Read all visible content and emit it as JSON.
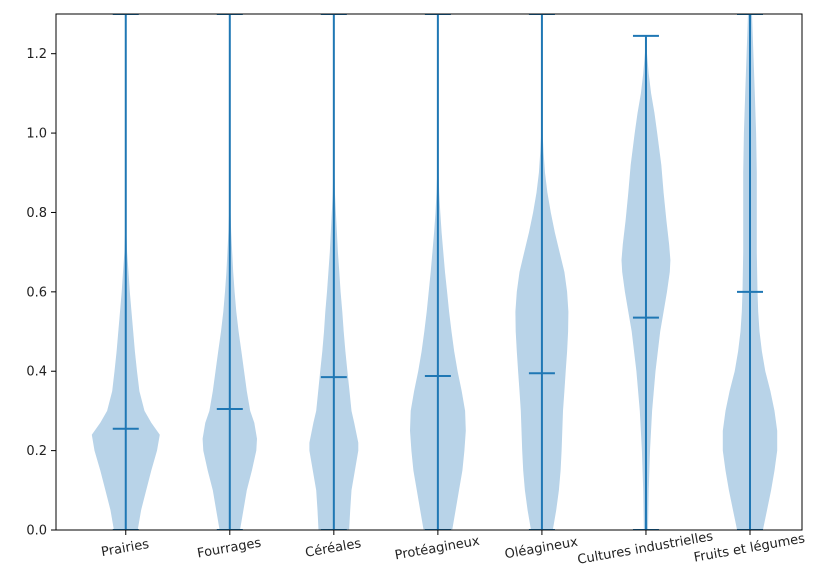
{
  "chart_data": {
    "type": "violin",
    "categories": [
      "Prairies",
      "Fourrages",
      "Céréales",
      "Protéagineux",
      "Oléagineux",
      "Cultures industrielles",
      "Fruits et légumes"
    ],
    "ylim": [
      0,
      1.3
    ],
    "yticks": [
      "0.0",
      "0.2",
      "0.4",
      "0.6",
      "0.8",
      "1.0",
      "1.2"
    ],
    "ytick_values": [
      0.0,
      0.2,
      0.4,
      0.6,
      0.8,
      1.0,
      1.2
    ],
    "grid": false,
    "fill_color": "#b8d3e8",
    "line_color": "#1f77b4",
    "series": [
      {
        "min": 0.0,
        "median": 0.255,
        "max": 1.3,
        "profile": [
          [
            0,
            0.35
          ],
          [
            0.05,
            0.45
          ],
          [
            0.1,
            0.6
          ],
          [
            0.15,
            0.75
          ],
          [
            0.2,
            0.92
          ],
          [
            0.24,
            1.0
          ],
          [
            0.27,
            0.75
          ],
          [
            0.3,
            0.55
          ],
          [
            0.35,
            0.4
          ],
          [
            0.4,
            0.33
          ],
          [
            0.45,
            0.27
          ],
          [
            0.5,
            0.22
          ],
          [
            0.55,
            0.17
          ],
          [
            0.6,
            0.12
          ],
          [
            0.65,
            0.08
          ],
          [
            0.7,
            0.04
          ],
          [
            0.75,
            0.02
          ],
          [
            0.8,
            0.01
          ],
          [
            1.3,
            0.0
          ]
        ]
      },
      {
        "min": 0.0,
        "median": 0.305,
        "max": 1.3,
        "profile": [
          [
            0,
            0.3
          ],
          [
            0.05,
            0.4
          ],
          [
            0.1,
            0.5
          ],
          [
            0.15,
            0.65
          ],
          [
            0.2,
            0.78
          ],
          [
            0.23,
            0.8
          ],
          [
            0.27,
            0.72
          ],
          [
            0.3,
            0.6
          ],
          [
            0.35,
            0.5
          ],
          [
            0.4,
            0.42
          ],
          [
            0.45,
            0.34
          ],
          [
            0.5,
            0.26
          ],
          [
            0.55,
            0.19
          ],
          [
            0.6,
            0.14
          ],
          [
            0.65,
            0.1
          ],
          [
            0.7,
            0.07
          ],
          [
            0.75,
            0.04
          ],
          [
            0.8,
            0.02
          ],
          [
            0.9,
            0.005
          ],
          [
            1.3,
            0.0
          ]
        ]
      },
      {
        "min": 0.0,
        "median": 0.385,
        "max": 1.3,
        "profile": [
          [
            0,
            0.45
          ],
          [
            0.05,
            0.48
          ],
          [
            0.1,
            0.52
          ],
          [
            0.15,
            0.62
          ],
          [
            0.2,
            0.72
          ],
          [
            0.22,
            0.72
          ],
          [
            0.27,
            0.6
          ],
          [
            0.3,
            0.52
          ],
          [
            0.35,
            0.46
          ],
          [
            0.4,
            0.4
          ],
          [
            0.45,
            0.34
          ],
          [
            0.5,
            0.29
          ],
          [
            0.55,
            0.25
          ],
          [
            0.6,
            0.2
          ],
          [
            0.65,
            0.16
          ],
          [
            0.7,
            0.12
          ],
          [
            0.75,
            0.09
          ],
          [
            0.8,
            0.06
          ],
          [
            0.85,
            0.03
          ],
          [
            0.9,
            0.02
          ],
          [
            1.0,
            0.005
          ],
          [
            1.3,
            0.0
          ]
        ]
      },
      {
        "min": 0.0,
        "median": 0.388,
        "max": 1.3,
        "profile": [
          [
            0,
            0.42
          ],
          [
            0.05,
            0.52
          ],
          [
            0.1,
            0.62
          ],
          [
            0.15,
            0.72
          ],
          [
            0.2,
            0.78
          ],
          [
            0.25,
            0.82
          ],
          [
            0.3,
            0.8
          ],
          [
            0.35,
            0.7
          ],
          [
            0.4,
            0.58
          ],
          [
            0.45,
            0.48
          ],
          [
            0.5,
            0.4
          ],
          [
            0.55,
            0.33
          ],
          [
            0.6,
            0.27
          ],
          [
            0.65,
            0.21
          ],
          [
            0.7,
            0.16
          ],
          [
            0.75,
            0.11
          ],
          [
            0.8,
            0.07
          ],
          [
            0.85,
            0.04
          ],
          [
            0.9,
            0.02
          ],
          [
            1.0,
            0.005
          ],
          [
            1.3,
            0.0
          ]
        ]
      },
      {
        "min": 0.0,
        "median": 0.395,
        "max": 1.3,
        "profile": [
          [
            0,
            0.32
          ],
          [
            0.05,
            0.42
          ],
          [
            0.1,
            0.5
          ],
          [
            0.15,
            0.55
          ],
          [
            0.2,
            0.58
          ],
          [
            0.25,
            0.6
          ],
          [
            0.3,
            0.62
          ],
          [
            0.35,
            0.66
          ],
          [
            0.4,
            0.7
          ],
          [
            0.45,
            0.74
          ],
          [
            0.5,
            0.77
          ],
          [
            0.55,
            0.78
          ],
          [
            0.6,
            0.74
          ],
          [
            0.65,
            0.66
          ],
          [
            0.7,
            0.52
          ],
          [
            0.75,
            0.38
          ],
          [
            0.8,
            0.26
          ],
          [
            0.85,
            0.16
          ],
          [
            0.9,
            0.09
          ],
          [
            0.95,
            0.05
          ],
          [
            1.0,
            0.02
          ],
          [
            1.1,
            0.005
          ],
          [
            1.3,
            0.0
          ]
        ]
      },
      {
        "min": 0.0,
        "median": 0.535,
        "max": 1.245,
        "profile": [
          [
            0,
            0.06
          ],
          [
            0.1,
            0.08
          ],
          [
            0.2,
            0.12
          ],
          [
            0.3,
            0.18
          ],
          [
            0.4,
            0.28
          ],
          [
            0.5,
            0.42
          ],
          [
            0.55,
            0.52
          ],
          [
            0.6,
            0.62
          ],
          [
            0.65,
            0.7
          ],
          [
            0.68,
            0.72
          ],
          [
            0.72,
            0.68
          ],
          [
            0.78,
            0.6
          ],
          [
            0.85,
            0.52
          ],
          [
            0.92,
            0.45
          ],
          [
            1.0,
            0.33
          ],
          [
            1.05,
            0.25
          ],
          [
            1.1,
            0.15
          ],
          [
            1.15,
            0.08
          ],
          [
            1.2,
            0.03
          ],
          [
            1.245,
            0.0
          ]
        ]
      },
      {
        "min": 0.0,
        "median": 0.6,
        "max": 1.3,
        "profile": [
          [
            0,
            0.38
          ],
          [
            0.05,
            0.5
          ],
          [
            0.1,
            0.62
          ],
          [
            0.15,
            0.72
          ],
          [
            0.2,
            0.8
          ],
          [
            0.25,
            0.8
          ],
          [
            0.3,
            0.72
          ],
          [
            0.35,
            0.6
          ],
          [
            0.4,
            0.45
          ],
          [
            0.45,
            0.35
          ],
          [
            0.5,
            0.28
          ],
          [
            0.55,
            0.24
          ],
          [
            0.6,
            0.22
          ],
          [
            0.7,
            0.2
          ],
          [
            0.8,
            0.2
          ],
          [
            0.9,
            0.2
          ],
          [
            1.0,
            0.18
          ],
          [
            1.1,
            0.14
          ],
          [
            1.2,
            0.1
          ],
          [
            1.3,
            0.06
          ]
        ]
      }
    ]
  }
}
